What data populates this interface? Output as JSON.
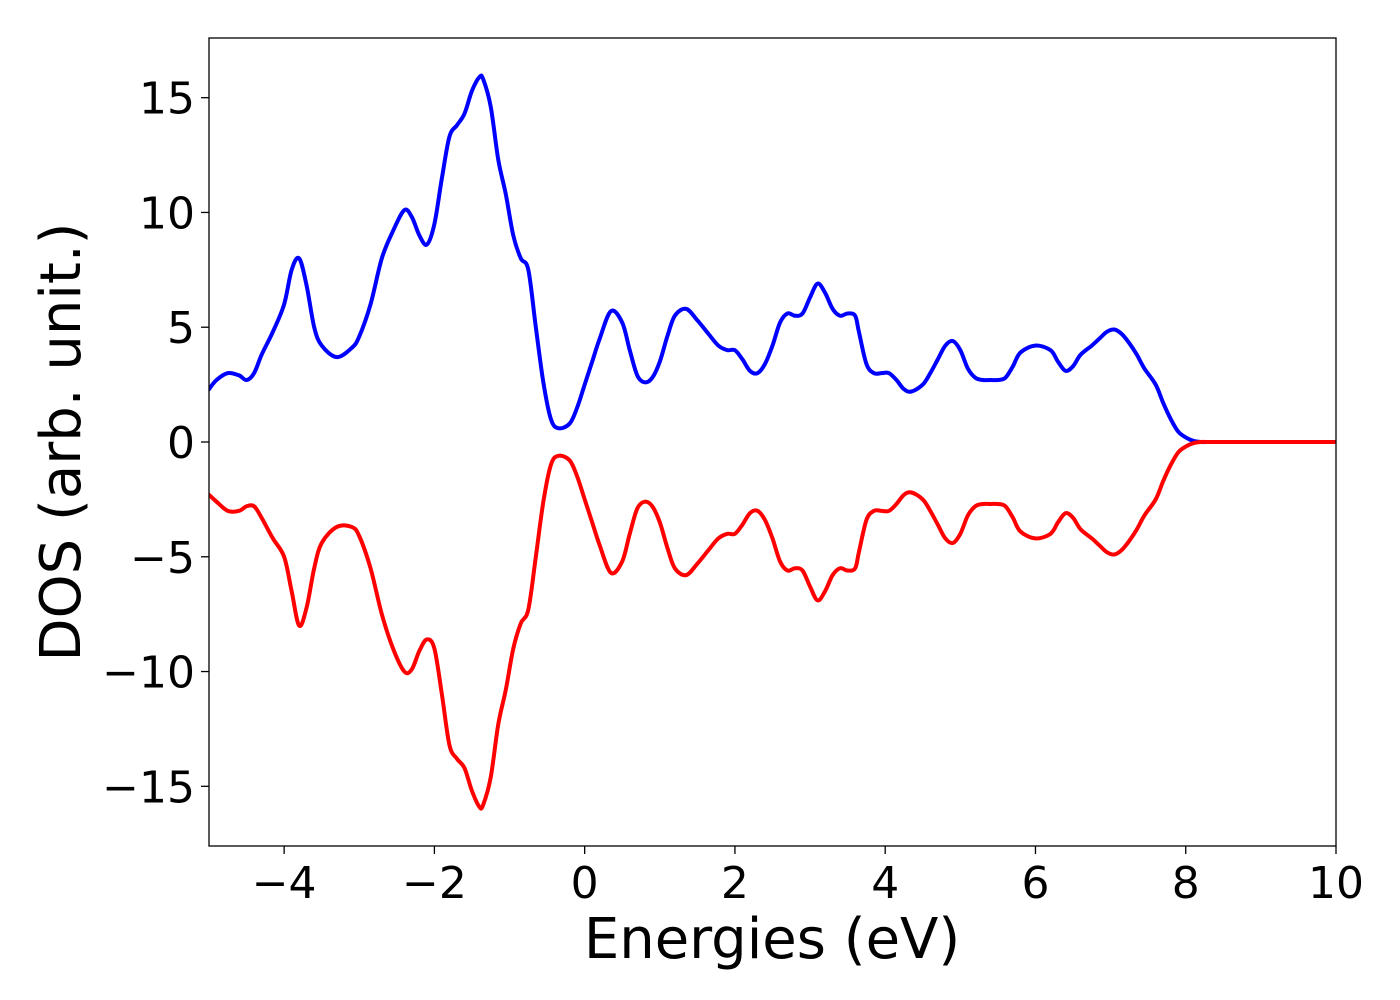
{
  "chart_data": {
    "type": "line",
    "title": "",
    "xlabel": "Energies (eV)",
    "ylabel": "DOS (arb. unit.)",
    "xlim": [
      -5,
      10
    ],
    "ylim": [
      -17.6,
      17.6
    ],
    "grid": false,
    "legend": "none",
    "xticks": [
      -4,
      -2,
      0,
      2,
      4,
      6,
      8,
      10
    ],
    "xtick_labels": [
      "−4",
      "−2",
      "0",
      "2",
      "4",
      "6",
      "8",
      "10"
    ],
    "yticks": [
      -15,
      -10,
      -5,
      0,
      5,
      10,
      15
    ],
    "ytick_labels": [
      "−15",
      "−10",
      "−5",
      "0",
      "5",
      "10",
      "15"
    ],
    "series": [
      {
        "color": "#0000ff",
        "x": [
          -5.0,
          -4.9,
          -4.75,
          -4.6,
          -4.5,
          -4.4,
          -4.3,
          -4.15,
          -4.0,
          -3.9,
          -3.8,
          -3.7,
          -3.6,
          -3.5,
          -3.3,
          -3.1,
          -3.0,
          -2.85,
          -2.7,
          -2.55,
          -2.4,
          -2.3,
          -2.2,
          -2.1,
          -2.0,
          -1.9,
          -1.8,
          -1.7,
          -1.6,
          -1.5,
          -1.4,
          -1.35,
          -1.25,
          -1.15,
          -1.05,
          -0.95,
          -0.85,
          -0.75,
          -0.65,
          -0.55,
          -0.45,
          -0.35,
          -0.2,
          -0.1,
          0.0,
          0.1,
          0.2,
          0.35,
          0.5,
          0.6,
          0.7,
          0.8,
          0.9,
          1.0,
          1.1,
          1.2,
          1.35,
          1.5,
          1.65,
          1.78,
          1.9,
          2.0,
          2.1,
          2.2,
          2.3,
          2.4,
          2.5,
          2.6,
          2.7,
          2.8,
          2.9,
          3.0,
          3.1,
          3.2,
          3.3,
          3.4,
          3.5,
          3.6,
          3.65,
          3.75,
          3.85,
          3.95,
          4.05,
          4.15,
          4.25,
          4.35,
          4.5,
          4.6,
          4.7,
          4.8,
          4.9,
          5.0,
          5.1,
          5.2,
          5.3,
          5.4,
          5.5,
          5.6,
          5.7,
          5.8,
          6.0,
          6.2,
          6.3,
          6.4,
          6.5,
          6.6,
          6.75,
          6.85,
          6.95,
          7.05,
          7.15,
          7.25,
          7.35,
          7.45,
          7.6,
          7.7,
          7.8,
          7.9,
          8.0,
          8.1,
          8.2,
          8.3,
          8.4,
          8.5,
          8.6,
          8.8,
          9.0,
          9.5,
          10.0
        ],
        "y": [
          2.3,
          2.7,
          3.0,
          2.9,
          2.7,
          3.0,
          3.8,
          4.8,
          6.0,
          7.5,
          8.0,
          6.8,
          5.0,
          4.2,
          3.7,
          4.1,
          4.6,
          6.0,
          8.0,
          9.2,
          10.1,
          9.8,
          9.0,
          8.6,
          9.5,
          11.5,
          13.3,
          13.8,
          14.3,
          15.3,
          15.9,
          15.8,
          14.6,
          12.3,
          10.8,
          9.0,
          8.0,
          7.5,
          5.0,
          2.6,
          1.0,
          0.6,
          0.8,
          1.5,
          2.5,
          3.5,
          4.5,
          5.7,
          5.2,
          4.0,
          2.9,
          2.6,
          2.8,
          3.5,
          4.6,
          5.5,
          5.8,
          5.3,
          4.7,
          4.2,
          4.0,
          4.0,
          3.6,
          3.1,
          3.0,
          3.4,
          4.2,
          5.2,
          5.6,
          5.5,
          5.6,
          6.3,
          6.9,
          6.5,
          5.8,
          5.5,
          5.6,
          5.5,
          4.8,
          3.4,
          3.0,
          3.0,
          3.0,
          2.7,
          2.3,
          2.2,
          2.5,
          3.0,
          3.6,
          4.2,
          4.4,
          4.0,
          3.2,
          2.8,
          2.7,
          2.7,
          2.7,
          2.8,
          3.3,
          3.9,
          4.2,
          4.0,
          3.5,
          3.1,
          3.3,
          3.8,
          4.2,
          4.5,
          4.8,
          4.9,
          4.7,
          4.3,
          3.8,
          3.2,
          2.5,
          1.7,
          1.0,
          0.45,
          0.2,
          0.05,
          0.0,
          0.0,
          0.0,
          0.0,
          0.0,
          0.0,
          0.0,
          0.0,
          0.0
        ]
      },
      {
        "color": "#ff0000",
        "x": [
          -5.0,
          -4.9,
          -4.75,
          -4.6,
          -4.5,
          -4.4,
          -4.3,
          -4.15,
          -4.0,
          -3.9,
          -3.8,
          -3.7,
          -3.6,
          -3.5,
          -3.3,
          -3.1,
          -3.0,
          -2.85,
          -2.7,
          -2.55,
          -2.4,
          -2.3,
          -2.2,
          -2.1,
          -2.0,
          -1.9,
          -1.8,
          -1.7,
          -1.6,
          -1.5,
          -1.4,
          -1.35,
          -1.25,
          -1.15,
          -1.05,
          -0.95,
          -0.85,
          -0.75,
          -0.65,
          -0.55,
          -0.45,
          -0.35,
          -0.2,
          -0.1,
          0.0,
          0.1,
          0.2,
          0.35,
          0.5,
          0.6,
          0.7,
          0.8,
          0.9,
          1.0,
          1.1,
          1.2,
          1.35,
          1.5,
          1.65,
          1.78,
          1.9,
          2.0,
          2.1,
          2.2,
          2.3,
          2.4,
          2.5,
          2.6,
          2.7,
          2.8,
          2.9,
          3.0,
          3.1,
          3.2,
          3.3,
          3.4,
          3.5,
          3.6,
          3.65,
          3.75,
          3.85,
          3.95,
          4.05,
          4.15,
          4.25,
          4.35,
          4.5,
          4.6,
          4.7,
          4.8,
          4.9,
          5.0,
          5.1,
          5.2,
          5.3,
          5.4,
          5.5,
          5.6,
          5.7,
          5.8,
          6.0,
          6.2,
          6.3,
          6.4,
          6.5,
          6.6,
          6.75,
          6.85,
          6.95,
          7.05,
          7.15,
          7.25,
          7.35,
          7.45,
          7.6,
          7.7,
          7.8,
          7.9,
          8.0,
          8.1,
          8.2,
          8.3,
          8.4,
          8.5,
          8.6,
          8.8,
          9.0,
          9.5,
          10.0
        ],
        "y": [
          -2.3,
          -2.6,
          -3.0,
          -3.0,
          -2.8,
          -2.8,
          -3.3,
          -4.2,
          -5.0,
          -6.5,
          -8.0,
          -7.2,
          -5.5,
          -4.4,
          -3.7,
          -3.7,
          -4.1,
          -5.5,
          -7.5,
          -9.0,
          -10.0,
          -9.9,
          -9.1,
          -8.6,
          -9.0,
          -11.0,
          -13.2,
          -13.8,
          -14.2,
          -15.2,
          -15.9,
          -15.8,
          -14.6,
          -12.3,
          -10.8,
          -9.0,
          -7.9,
          -7.3,
          -5.0,
          -2.6,
          -1.0,
          -0.6,
          -0.8,
          -1.5,
          -2.5,
          -3.5,
          -4.5,
          -5.7,
          -5.2,
          -4.0,
          -2.9,
          -2.6,
          -2.8,
          -3.5,
          -4.6,
          -5.5,
          -5.8,
          -5.3,
          -4.7,
          -4.2,
          -4.0,
          -4.0,
          -3.6,
          -3.1,
          -3.0,
          -3.4,
          -4.2,
          -5.2,
          -5.6,
          -5.5,
          -5.6,
          -6.3,
          -6.9,
          -6.5,
          -5.8,
          -5.5,
          -5.6,
          -5.5,
          -4.8,
          -3.4,
          -3.0,
          -3.0,
          -3.0,
          -2.7,
          -2.3,
          -2.2,
          -2.5,
          -3.0,
          -3.6,
          -4.2,
          -4.4,
          -4.0,
          -3.2,
          -2.8,
          -2.7,
          -2.7,
          -2.7,
          -2.8,
          -3.3,
          -3.9,
          -4.2,
          -4.0,
          -3.5,
          -3.1,
          -3.3,
          -3.8,
          -4.2,
          -4.5,
          -4.8,
          -4.9,
          -4.7,
          -4.3,
          -3.8,
          -3.2,
          -2.5,
          -1.7,
          -1.0,
          -0.45,
          -0.2,
          -0.05,
          0.0,
          0.0,
          0.0,
          0.0,
          0.0,
          0.0,
          0.0,
          0.0,
          0.0
        ]
      }
    ]
  }
}
